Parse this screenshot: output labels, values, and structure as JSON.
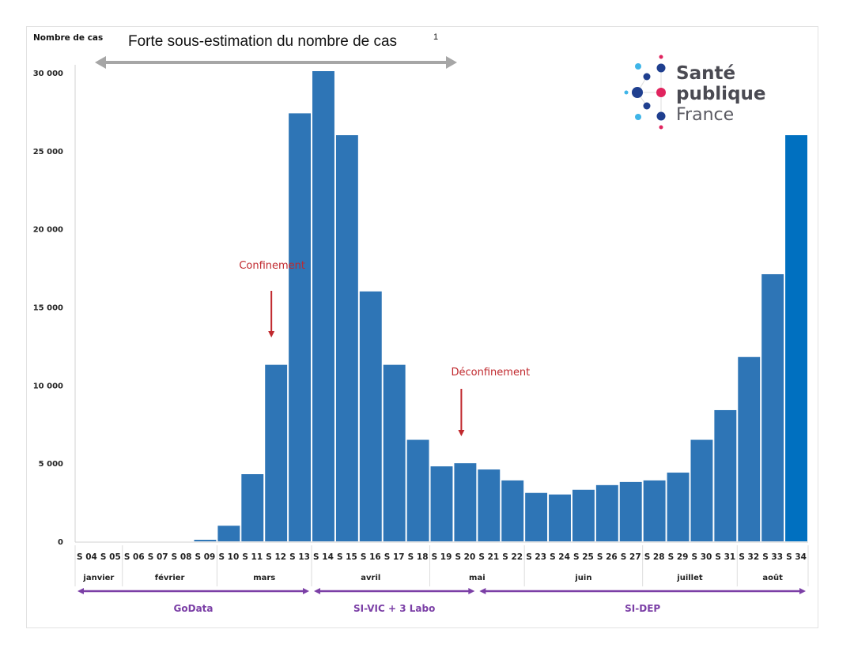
{
  "chart_data": {
    "type": "bar",
    "title": "Forte sous-estimation du nombre de cas",
    "title_superscript": "1",
    "ylabel": "Nombre de cas",
    "xlabel": "",
    "ylim": [
      0,
      30000
    ],
    "yticks": [
      0,
      5000,
      10000,
      15000,
      20000,
      25000,
      30000
    ],
    "ytick_labels": [
      "0",
      "5 000",
      "10 000",
      "15 000",
      "20 000",
      "25 000",
      "30 000"
    ],
    "grid": false,
    "categories": [
      "S 04",
      "S 05",
      "S 06",
      "S 07",
      "S 08",
      "S 09",
      "S 10",
      "S 11",
      "S 12",
      "S 13",
      "S 14",
      "S 15",
      "S 16",
      "S 17",
      "S 18",
      "S 19",
      "S 20",
      "S 21",
      "S 22",
      "S 23",
      "S 24",
      "S 25",
      "S 26",
      "S 27",
      "S 28",
      "S 29",
      "S 30",
      "S 31",
      "S 32",
      "S 33",
      "S 34"
    ],
    "values": [
      0,
      0,
      0,
      0,
      0,
      100,
      1000,
      4300,
      11300,
      27400,
      30100,
      26000,
      16000,
      11300,
      6500,
      4800,
      5000,
      4600,
      3900,
      3100,
      3000,
      3300,
      3600,
      3800,
      3900,
      4400,
      6500,
      8400,
      11800,
      17100,
      26000
    ],
    "bar_color": "#2e75b6",
    "last_bar_color": "#0070c0",
    "months": [
      {
        "label": "janvier",
        "start": "S 04",
        "end": "S 05"
      },
      {
        "label": "février",
        "start": "S 06",
        "end": "S 09"
      },
      {
        "label": "mars",
        "start": "S 10",
        "end": "S 13"
      },
      {
        "label": "avril",
        "start": "S 14",
        "end": "S 18"
      },
      {
        "label": "mai",
        "start": "S 19",
        "end": "S 22"
      },
      {
        "label": "juin",
        "start": "S 23",
        "end": "S 27"
      },
      {
        "label": "juillet",
        "start": "S 28",
        "end": "S 31"
      },
      {
        "label": "août",
        "start": "S 32",
        "end": "S 34"
      }
    ],
    "data_sources": [
      {
        "label": "GoData",
        "start": "S 04",
        "end": "S 13"
      },
      {
        "label": "SI-VIC + 3 Labo",
        "start": "S 14",
        "end": "S 20"
      },
      {
        "label": "SI-DEP",
        "start": "S 21",
        "end": "S 34"
      }
    ],
    "annotations": [
      {
        "label": "Confinement",
        "week": "S 12"
      },
      {
        "label": "Déconfinement",
        "week": "S 20"
      }
    ],
    "underestimation_range": {
      "start": "S 04",
      "end": "S 20"
    },
    "colors": {
      "annotation": "#c0282d",
      "source": "#7b3fa6",
      "arrow_grey": "#a6a6a6"
    }
  },
  "logo": {
    "line1": "Santé",
    "line2": "publique",
    "line3": "France"
  }
}
